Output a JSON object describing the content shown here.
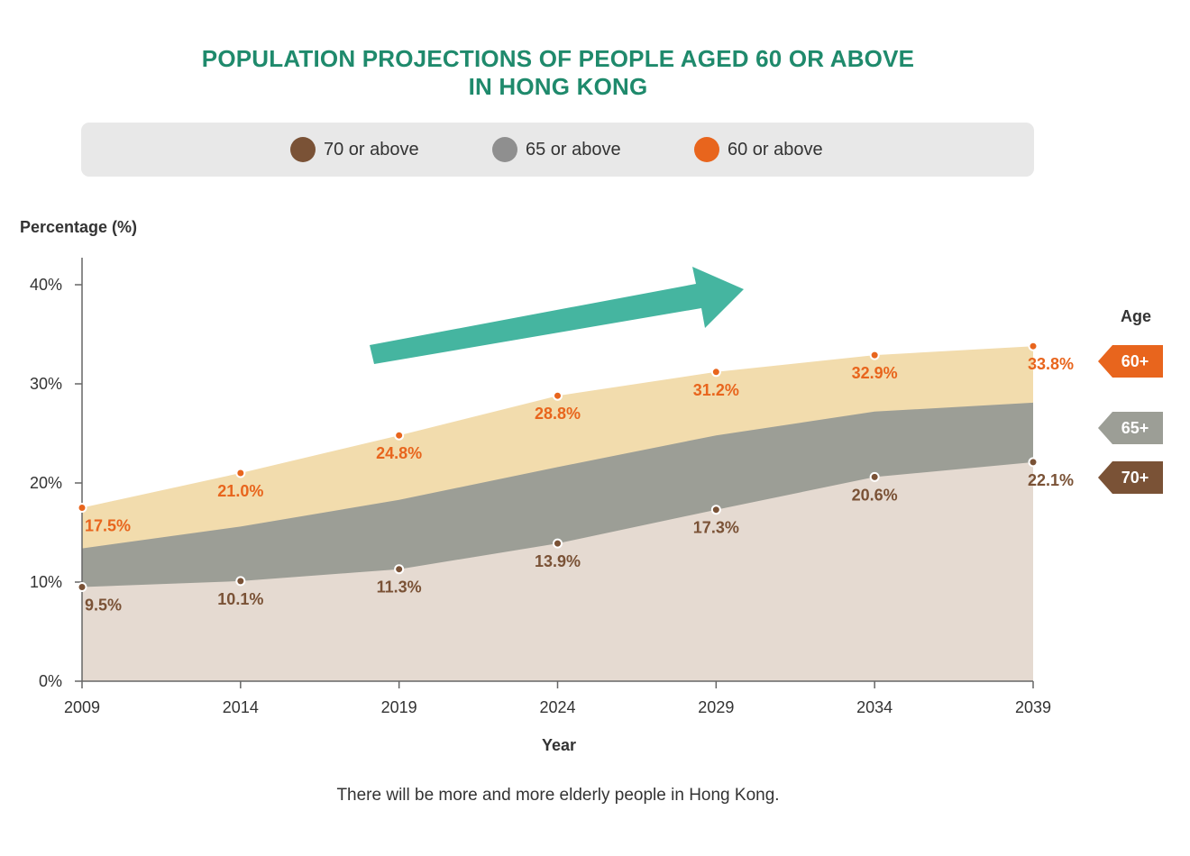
{
  "chart_data": {
    "type": "area",
    "title": "POPULATION PROJECTIONS OF PEOPLE AGED 60 OR ABOVE IN HONG KONG",
    "title_lines": [
      "POPULATION PROJECTIONS OF PEOPLE AGED 60 OR ABOVE",
      "IN HONG KONG"
    ],
    "xlabel": "Year",
    "ylabel": "Percentage (%)",
    "x": [
      2009,
      2014,
      2019,
      2024,
      2029,
      2034,
      2039
    ],
    "x_tick_labels": [
      "2009",
      "2014",
      "2019",
      "2024",
      "2029",
      "2034",
      "2039"
    ],
    "ylim": [
      0,
      40
    ],
    "y_ticks": [
      0,
      10,
      20,
      30,
      40
    ],
    "y_tick_labels": [
      "0%",
      "10%",
      "20%",
      "30%",
      "40%"
    ],
    "grid": false,
    "legend_position": "top",
    "series": [
      {
        "name": "70 or above",
        "tag": "70+",
        "values": [
          9.5,
          10.1,
          11.3,
          13.9,
          17.3,
          20.6,
          22.1
        ],
        "labels": [
          "9.5%",
          "10.1%",
          "11.3%",
          "13.9%",
          "17.3%",
          "20.6%",
          "22.1%"
        ],
        "fill_color": "#e5dad1",
        "marker_color": "#7a5236",
        "label_color": "#7a5236",
        "legend_color": "#7a5236",
        "tag_color": "#7a5236"
      },
      {
        "name": "65 or above",
        "tag": "65+",
        "values": [
          13.4,
          15.6,
          18.3,
          21.6,
          24.8,
          27.2,
          28.1
        ],
        "labels": [],
        "fill_color": "#9c9e96",
        "legend_color": "#8f8f8f",
        "tag_color": "#9c9e96"
      },
      {
        "name": "60 or above",
        "tag": "60+",
        "values": [
          17.5,
          21.0,
          24.8,
          28.8,
          31.2,
          32.9,
          33.8
        ],
        "labels": [
          "17.5%",
          "21.0%",
          "24.8%",
          "28.8%",
          "31.2%",
          "32.9%",
          "33.8%"
        ],
        "fill_color": "#f2dcad",
        "marker_color": "#e8651d",
        "label_color": "#e8651d",
        "legend_color": "#e8651d",
        "tag_color": "#e8651d"
      }
    ],
    "arrow_color": "#45b5a0",
    "legend_title": "Age"
  },
  "caption": "There will be more and more elderly people in Hong Kong."
}
